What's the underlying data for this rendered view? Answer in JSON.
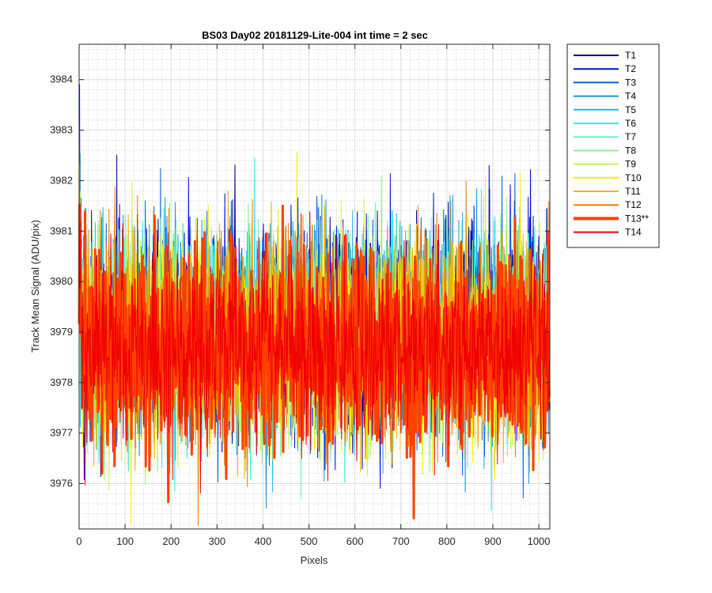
{
  "chart_data": {
    "type": "line",
    "title": "BS03 Day02 20181129-Lite-004 int time = 2 sec",
    "xlabel": "Pixels",
    "ylabel": "Track Mean Signal (ADU/pix)",
    "xlim": [
      0,
      1024
    ],
    "ylim": [
      3975.1,
      3984.7
    ],
    "xticks": [
      0,
      100,
      200,
      300,
      400,
      500,
      600,
      700,
      800,
      900,
      1000
    ],
    "yticks": [
      3976,
      3977,
      3978,
      3979,
      3980,
      3981,
      3982,
      3983,
      3984
    ],
    "grid": "major+minor",
    "legend_position": "outside-right",
    "n_points": 1024,
    "series": [
      {
        "name": "T1",
        "color": "#00008f",
        "width": 1,
        "mean": 3979.1,
        "spread": 1.35
      },
      {
        "name": "T2",
        "color": "#0010e0",
        "width": 1,
        "mean": 3979.1,
        "spread": 1.35
      },
      {
        "name": "T3",
        "color": "#0060d8",
        "width": 1,
        "mean": 3979.0,
        "spread": 1.3
      },
      {
        "name": "T4",
        "color": "#1a90e0",
        "width": 1,
        "mean": 3979.0,
        "spread": 1.3
      },
      {
        "name": "T5",
        "color": "#20b8e8",
        "width": 1,
        "mean": 3979.0,
        "spread": 1.3
      },
      {
        "name": "T6",
        "color": "#30e8e8",
        "width": 1,
        "mean": 3979.0,
        "spread": 1.3
      },
      {
        "name": "T7",
        "color": "#70f0c8",
        "width": 1,
        "mean": 3979.0,
        "spread": 1.3
      },
      {
        "name": "T8",
        "color": "#90f090",
        "width": 1,
        "mean": 3978.9,
        "spread": 1.3
      },
      {
        "name": "T9",
        "color": "#c8f050",
        "width": 1,
        "mean": 3978.9,
        "spread": 1.3
      },
      {
        "name": "T10",
        "color": "#f0f000",
        "width": 1,
        "mean": 3978.8,
        "spread": 1.35
      },
      {
        "name": "T11",
        "color": "#f0b000",
        "width": 1,
        "mean": 3978.8,
        "spread": 1.35
      },
      {
        "name": "T12",
        "color": "#f08000",
        "width": 1,
        "mean": 3978.8,
        "spread": 1.35
      },
      {
        "name": "T13**",
        "color": "#ff4000",
        "width": 3,
        "mean": 3978.7,
        "spread": 1.25
      },
      {
        "name": "T14",
        "color": "#f00000",
        "width": 1,
        "mean": 3978.7,
        "spread": 1.25
      }
    ]
  }
}
